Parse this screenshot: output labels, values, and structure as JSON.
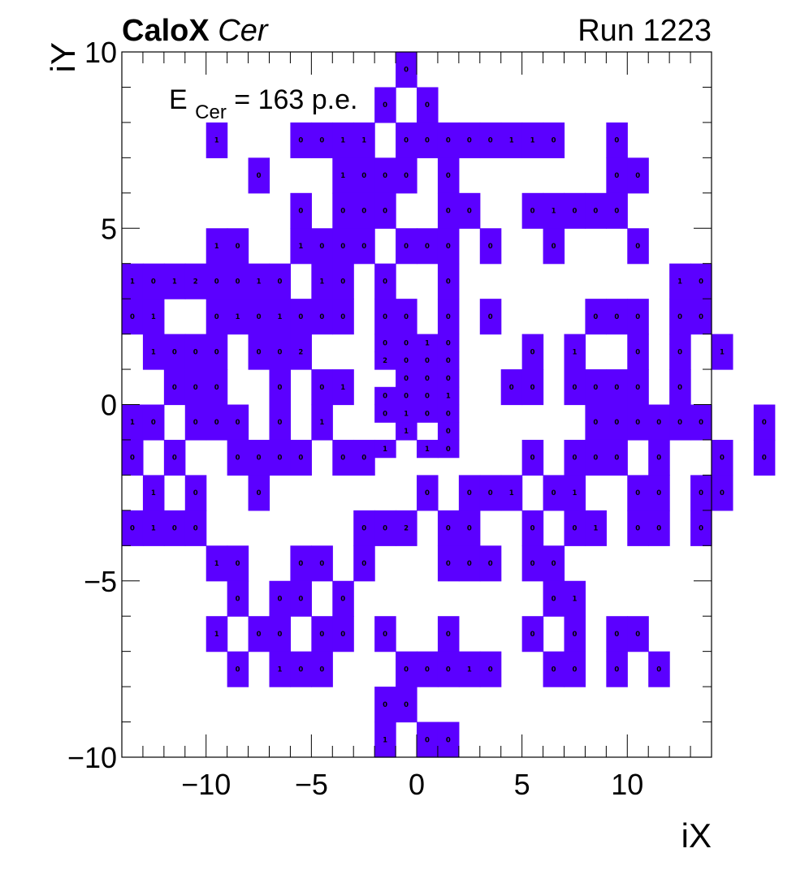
{
  "chart_data": {
    "type": "heatmap",
    "title_bold": "CaloX",
    "title_italic": "Cer",
    "run_label": "Run 1223",
    "energy_label": {
      "prefix": "E",
      "subscript": "Cer",
      "suffix": " = 163 p.e."
    },
    "xlabel": "iX",
    "ylabel": "iY",
    "xlim": [
      -14,
      14
    ],
    "ylim": [
      -10,
      10
    ],
    "xticks": [
      -10,
      -5,
      0,
      5,
      10
    ],
    "xtick_labels": [
      "−10",
      "−5",
      "0",
      "5",
      "10"
    ],
    "yticks": [
      -10,
      -5,
      0,
      5,
      10
    ],
    "ytick_labels": [
      "−10",
      "−5",
      "0",
      "5",
      "10"
    ],
    "fill_color": "#5b00ff",
    "grid": false,
    "rows": [
      {
        "y": 9.5,
        "x0": -1,
        "v": "0"
      },
      {
        "y": 8.5,
        "x0": -2,
        "v": "0.0"
      },
      {
        "y": 7.5,
        "x0": -10,
        "v": "1...0011.00000110..0"
      },
      {
        "y": 6.5,
        "x0": -8,
        "v": "0...1000.0.......00"
      },
      {
        "y": 5.5,
        "x0": -6,
        "v": "0.000..00..01000"
      },
      {
        "y": 4.5,
        "x0": -10,
        "v": "10..1000.000.0..0...0"
      },
      {
        "y": 3.5,
        "x0": -14,
        "v": "10120010.10.0..0..........10"
      },
      {
        "y": 2.5,
        "x0": -14,
        "v": "01..0101000.00.0.0....000.00"
      },
      {
        "y": 1.5,
        "x0": -13,
        "v": "1000.002..........0.1..0.0.1"
      },
      {
        "y": 0.5,
        "x0": -12,
        "v": "000..0.01.......00.0000.0"
      },
      {
        "y": -0.5,
        "x0": -14,
        "v": "10.000.0.1............000000..0"
      },
      {
        "y": -1.5,
        "x0": -14,
        "v": "0.0..0000.00.......0.000.0..0.0"
      },
      {
        "y": -2.5,
        "x0": -13,
        "v": "1.0..0.......0.001.01..00.00"
      },
      {
        "y": -3.5,
        "x0": -14,
        "v": "0100.......002.00..0.01.00.0"
      },
      {
        "y": -4.5,
        "x0": -10,
        "v": "10..00.0...000.00"
      },
      {
        "y": -5.5,
        "x0": -9,
        "v": "0.00.0.........01"
      },
      {
        "y": -6.5,
        "x0": -10,
        "v": "1.00.00.0..0...0.0.00"
      },
      {
        "y": -7.5,
        "x0": -9,
        "v": "0.100...00010..00.0.0"
      },
      {
        "y": -8.5,
        "x0": -2,
        "v": "00"
      },
      {
        "y": -9.5,
        "x0": -2,
        "v": "1.00"
      }
    ],
    "fine_cells": [
      {
        "x": -1.5,
        "y": 1.75,
        "v": "0"
      },
      {
        "x": -1.5,
        "y": 1.25,
        "v": "2"
      },
      {
        "x": -0.5,
        "y": 1.75,
        "v": "0"
      },
      {
        "x": 0.5,
        "y": 1.75,
        "v": "1"
      },
      {
        "x": 1.5,
        "y": 1.75,
        "v": "0"
      },
      {
        "x": -0.5,
        "y": 1.25,
        "v": "0"
      },
      {
        "x": 0.5,
        "y": 1.25,
        "v": "0"
      },
      {
        "x": 1.5,
        "y": 1.25,
        "v": "0"
      },
      {
        "x": -0.5,
        "y": 0.75,
        "v": "0"
      },
      {
        "x": 0.5,
        "y": 0.75,
        "v": "0"
      },
      {
        "x": 1.5,
        "y": 0.75,
        "v": "0"
      },
      {
        "x": -1.5,
        "y": 0.25,
        "v": "0"
      },
      {
        "x": -0.5,
        "y": 0.25,
        "v": "0"
      },
      {
        "x": 0.5,
        "y": 0.25,
        "v": "0"
      },
      {
        "x": 1.5,
        "y": 0.25,
        "v": "1"
      },
      {
        "x": -1.5,
        "y": -0.25,
        "v": "0"
      },
      {
        "x": -0.5,
        "y": -0.25,
        "v": "1"
      },
      {
        "x": 0.5,
        "y": -0.25,
        "v": "0"
      },
      {
        "x": 1.5,
        "y": -0.25,
        "v": "0"
      },
      {
        "x": -0.5,
        "y": -0.75,
        "v": "1"
      },
      {
        "x": 1.5,
        "y": -0.75,
        "v": "0"
      },
      {
        "x": -1.5,
        "y": -1.25,
        "v": "1"
      },
      {
        "x": 0.5,
        "y": -1.25,
        "v": "1"
      },
      {
        "x": 1.5,
        "y": -1.25,
        "v": "0"
      }
    ]
  }
}
